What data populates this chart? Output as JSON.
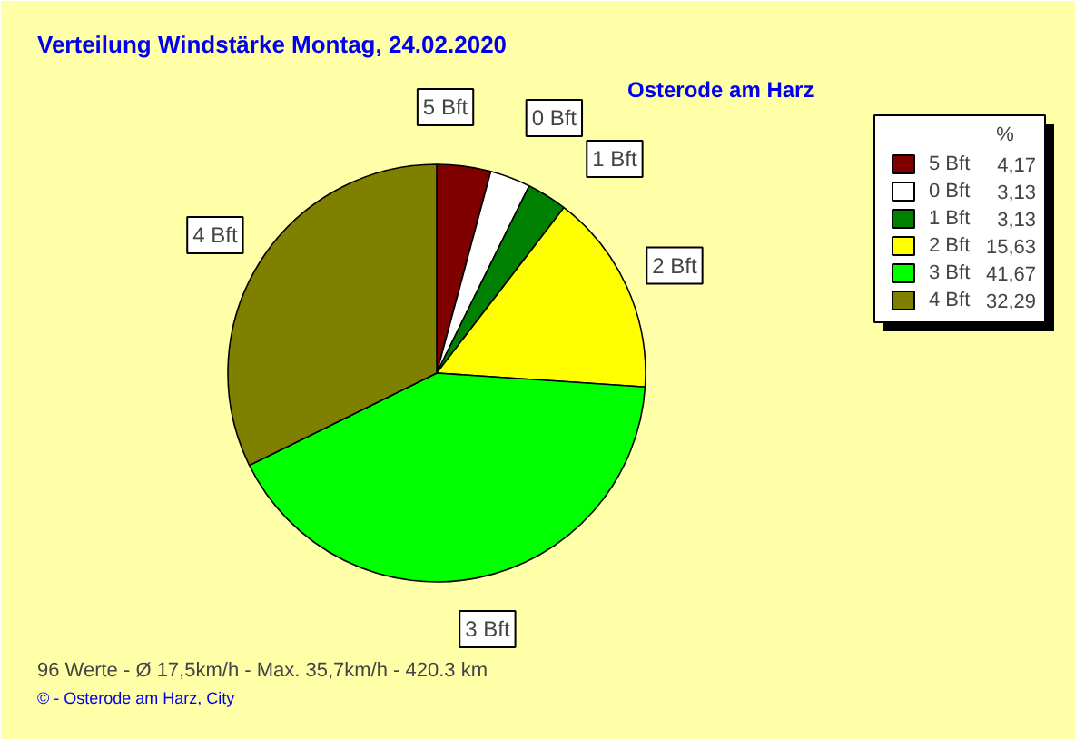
{
  "chart_data": {
    "type": "pie",
    "title": "Verteilung Windstärke  Montag, 24.02.2020",
    "subtitle": "Osterode am Harz",
    "legend_title": "%",
    "legend": "top right",
    "categories": [
      "5 Bft",
      "0 Bft",
      "1 Bft",
      "2 Bft",
      "3 Bft",
      "4 Bft"
    ],
    "values": [
      4.17,
      3.13,
      3.13,
      15.63,
      41.67,
      32.29
    ],
    "value_labels": [
      "4,17",
      "3,13",
      "3,13",
      "15,63",
      "41,67",
      "32,29"
    ],
    "colors": [
      "#800000",
      "#ffffff",
      "#008000",
      "#ffff00",
      "#00ff00",
      "#808000"
    ],
    "annotations": [
      "96 Werte   -   Ø 17,5km/h  -  Max. 35,7km/h   -   420.3 km",
      "©  -  Osterode am Harz, City"
    ]
  }
}
